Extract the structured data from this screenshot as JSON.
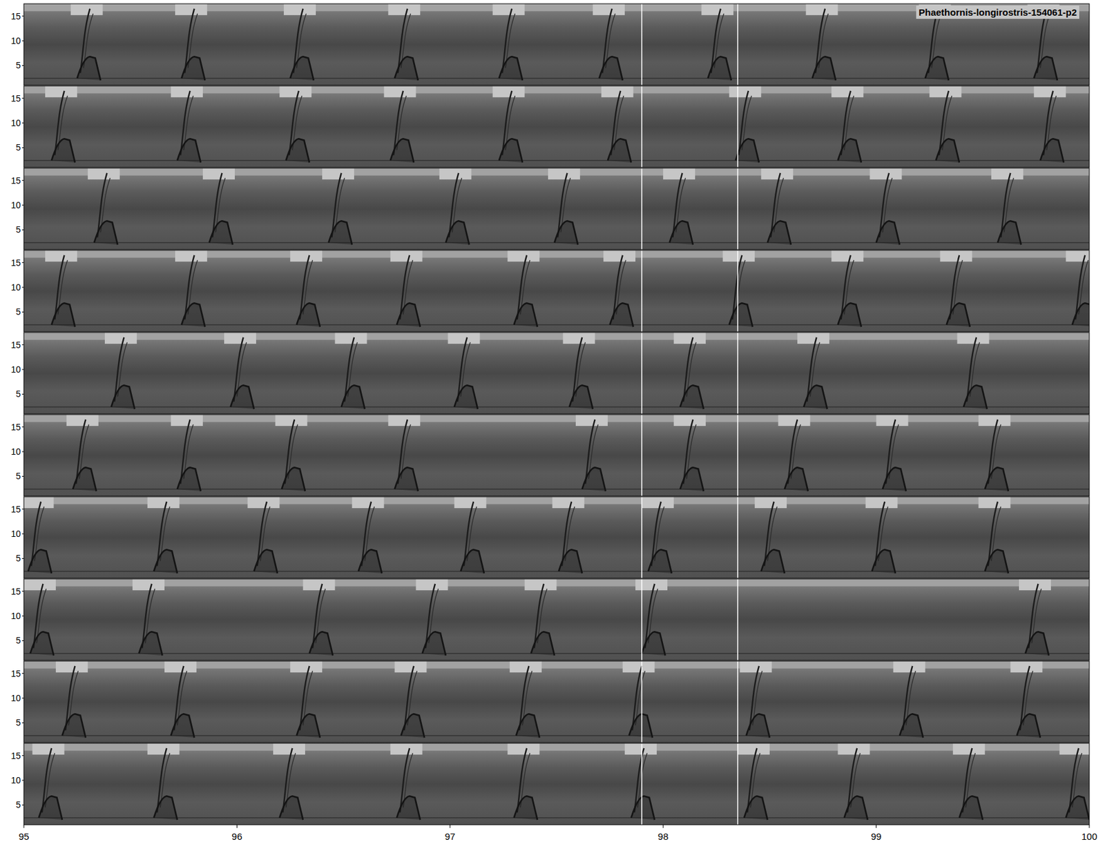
{
  "chart_data": {
    "type": "spectrogram",
    "title": "Phaethornis-longirostris-154061-p2",
    "xlim": [
      95,
      100
    ],
    "xticks": [
      95,
      96,
      97,
      98,
      99,
      100
    ],
    "ylim": [
      1,
      17.5
    ],
    "yticks": [
      5,
      10,
      15
    ],
    "segment_lines": [
      97.9,
      98.35
    ],
    "panels": [
      {
        "call_onsets": [
          95.25,
          95.74,
          96.25,
          96.74,
          97.23,
          97.7,
          98.21,
          98.7,
          99.23,
          99.74
        ]
      },
      {
        "call_onsets": [
          95.13,
          95.72,
          96.23,
          96.72,
          97.23,
          97.74,
          98.34,
          98.82,
          99.28,
          99.77
        ]
      },
      {
        "call_onsets": [
          95.33,
          95.87,
          96.43,
          96.98,
          97.49,
          98.03,
          98.49,
          99.0,
          99.57
        ]
      },
      {
        "call_onsets": [
          95.13,
          95.74,
          96.28,
          96.75,
          97.3,
          97.75,
          98.31,
          98.82,
          99.33,
          99.92
        ]
      },
      {
        "call_onsets": [
          95.41,
          95.97,
          96.49,
          97.02,
          97.56,
          98.08,
          98.66,
          99.41
        ]
      },
      {
        "call_onsets": [
          95.23,
          95.72,
          96.21,
          96.74,
          97.62,
          98.08,
          98.57,
          99.03,
          99.51
        ]
      },
      {
        "call_onsets": [
          95.02,
          95.61,
          96.08,
          96.57,
          97.05,
          97.51,
          97.93,
          98.46,
          98.98,
          99.51
        ]
      },
      {
        "call_onsets": [
          95.03,
          95.54,
          96.34,
          96.87,
          97.38,
          97.9,
          99.7
        ]
      },
      {
        "call_onsets": [
          95.18,
          95.69,
          96.28,
          96.77,
          97.31,
          97.84,
          98.39,
          99.11,
          99.66
        ]
      },
      {
        "call_onsets": [
          95.07,
          95.61,
          96.2,
          96.75,
          97.3,
          97.85,
          98.38,
          98.85,
          99.39,
          99.89
        ]
      }
    ]
  }
}
